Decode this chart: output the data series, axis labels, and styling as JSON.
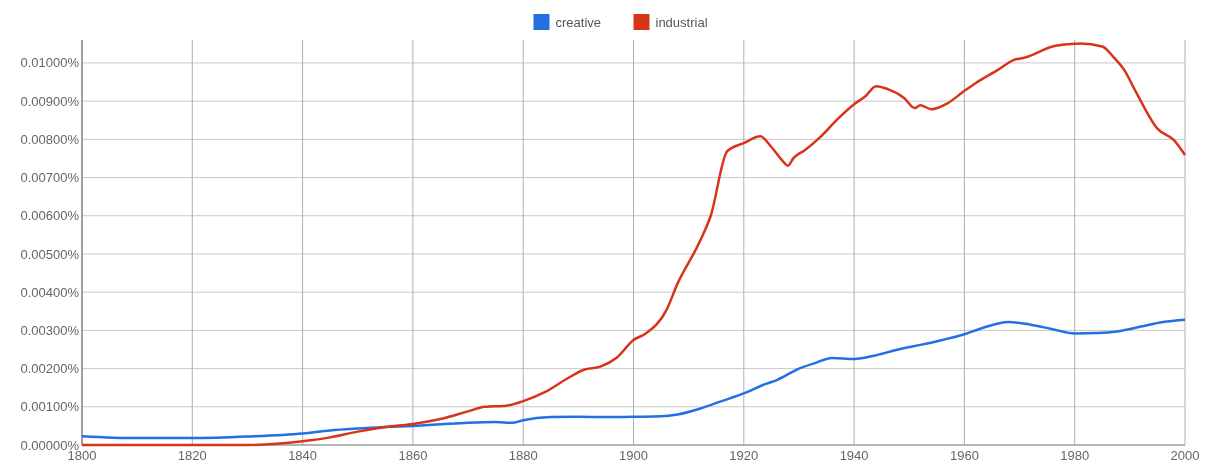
{
  "chart_data": {
    "type": "line",
    "legend": "top",
    "grid": true,
    "marker": "none",
    "line_style": "solid",
    "xlim": [
      1800,
      2000
    ],
    "xticks": [
      1800,
      1820,
      1840,
      1860,
      1880,
      1900,
      1920,
      1940,
      1960,
      1980,
      2000
    ],
    "ylim": [
      0,
      0.0106
    ],
    "yticks": [
      {
        "value": 0,
        "label": "0.00000%"
      },
      {
        "value": 0.001,
        "label": "0.00100%"
      },
      {
        "value": 0.002,
        "label": "0.00200%"
      },
      {
        "value": 0.003,
        "label": "0.00300%"
      },
      {
        "value": 0.004,
        "label": "0.00400%"
      },
      {
        "value": 0.005,
        "label": "0.00500%"
      },
      {
        "value": 0.006,
        "label": "0.00600%"
      },
      {
        "value": 0.007,
        "label": "0.00700%"
      },
      {
        "value": 0.008,
        "label": "0.00800%"
      },
      {
        "value": 0.009,
        "label": "0.00900%"
      },
      {
        "value": 0.01,
        "label": "0.01000%"
      }
    ],
    "series": [
      {
        "name": "creative",
        "color": "#2270e4",
        "x": [
          1800,
          1810,
          1820,
          1830,
          1840,
          1845,
          1850,
          1855,
          1860,
          1865,
          1870,
          1875,
          1878,
          1880,
          1885,
          1890,
          1895,
          1900,
          1905,
          1908,
          1912,
          1916,
          1920,
          1924,
          1926,
          1930,
          1933,
          1936,
          1940,
          1944,
          1948,
          1952,
          1956,
          1960,
          1963,
          1968,
          1972,
          1976,
          1980,
          1984,
          1988,
          1992,
          1996,
          2000
        ],
        "values": [
          0.00023,
          0.00018,
          0.00018,
          0.00022,
          0.0003,
          0.00038,
          0.00043,
          0.00047,
          0.0005,
          0.00054,
          0.00058,
          0.0006,
          0.00058,
          0.00065,
          0.00073,
          0.00074,
          0.00073,
          0.00074,
          0.00075,
          0.0008,
          0.00095,
          0.00115,
          0.00135,
          0.0016,
          0.0017,
          0.002,
          0.00215,
          0.00228,
          0.00225,
          0.00235,
          0.0025,
          0.00262,
          0.00275,
          0.0029,
          0.00305,
          0.00322,
          0.00315,
          0.00303,
          0.00292,
          0.00293,
          0.00298,
          0.0031,
          0.00322,
          0.00328
        ]
      },
      {
        "name": "industrial",
        "color": "#d8341a",
        "x": [
          1800,
          1810,
          1820,
          1830,
          1840,
          1845,
          1850,
          1855,
          1860,
          1865,
          1870,
          1873,
          1877,
          1880,
          1884,
          1888,
          1891,
          1894,
          1897,
          1900,
          1902,
          1906,
          1908,
          1912,
          1914,
          1917,
          1920,
          1923,
          1925,
          1927,
          1928,
          1929,
          1931,
          1934,
          1937,
          1940,
          1942,
          1944,
          1946,
          1949,
          1951,
          1952,
          1954,
          1957,
          1960,
          1962,
          1966,
          1969,
          1971,
          1976,
          1979,
          1981,
          1985,
          1987,
          1989,
          1991,
          1995,
          1998,
          2000
        ],
        "values": [
          0,
          0,
          0,
          0,
          0.0001,
          0.0002,
          0.00035,
          0.00047,
          0.00055,
          0.00068,
          0.00088,
          0.001,
          0.00103,
          0.00115,
          0.00139,
          0.00174,
          0.00197,
          0.00205,
          0.00229,
          0.00275,
          0.0029,
          0.00354,
          0.00423,
          0.00532,
          0.006,
          0.00769,
          0.0079,
          0.00808,
          0.0078,
          0.00744,
          0.00731,
          0.00751,
          0.00771,
          0.00808,
          0.00853,
          0.00892,
          0.00912,
          0.00939,
          0.00932,
          0.00909,
          0.00882,
          0.00889,
          0.00879,
          0.00895,
          0.00927,
          0.00947,
          0.00981,
          0.01008,
          0.01014,
          0.01043,
          0.01049,
          0.01051,
          0.01043,
          0.01016,
          0.00981,
          0.00927,
          0.00828,
          0.00798,
          0.00759
        ]
      }
    ]
  }
}
